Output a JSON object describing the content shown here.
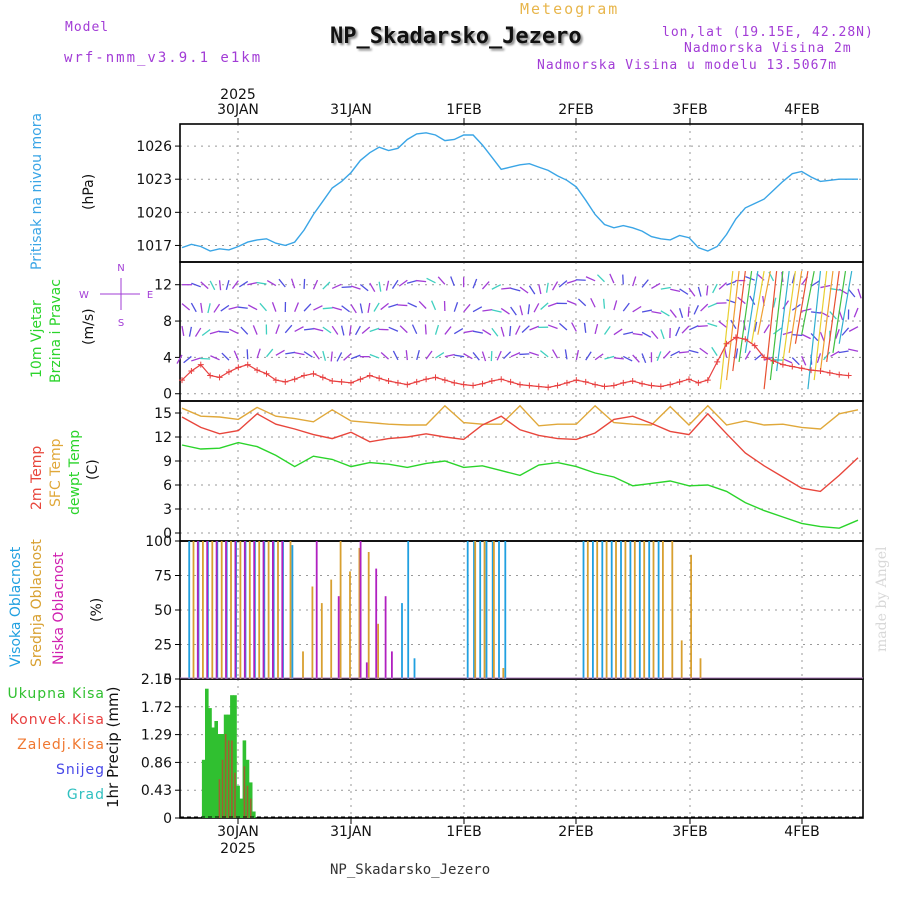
{
  "header": {
    "model_label": "Model",
    "model_name": "wrf-nmm_v3.9.1 e1km",
    "meteogram_label": "Meteogram",
    "station_title": "NP_Skadarsko_Jezero",
    "coords": "lon,lat (19.15E, 42.28N)",
    "altitude": "Nadmorska Visina 2m",
    "model_altitude": "Nadmorska Visina u modelu 13.5067m"
  },
  "footer": {
    "station": "NP_Skadarsko_Jezero",
    "credit": "made by Angel"
  },
  "axis": {
    "year_top": "2025",
    "year_bottom": "2025",
    "dates": [
      "30JAN",
      "31JAN",
      "1FEB",
      "2FEB",
      "3FEB",
      "4FEB"
    ]
  },
  "panel_labels": {
    "pressure": {
      "name": "Pritisak na nivou mora",
      "unit": "(hPa)"
    },
    "wind": {
      "name1": "10m Vjetar",
      "name2": "Brzina i Pravac",
      "unit": "(m/s)",
      "compass": {
        "n": "N",
        "s": "S",
        "e": "E",
        "w": "W"
      }
    },
    "temp": {
      "t2m": "2m Temp",
      "sfc": "SFC Temp",
      "dewpt": "dewpt Temp",
      "unit": "(C)"
    },
    "cloud": {
      "high": "Visoka Oblacnost",
      "mid": "Srednja Oblacnost",
      "low": "Niska Oblacnost",
      "unit": "(%)"
    },
    "precip": {
      "total": "Ukupna Kisa",
      "conv": "Konvek.Kisa",
      "frozen": "Zaledj.Kisa",
      "snow": "Snijeg",
      "graupel": "Grad",
      "axis": "1hr Precip (mm)"
    }
  },
  "colors": {
    "pressure": "#3aa5e6",
    "t2m": "#e8463c",
    "sfc": "#e0a83a",
    "dewpt": "#2bd42b",
    "high": "#20a0e0",
    "mid": "#d8a030",
    "low": "#b020c0",
    "violet": "#a23cd6",
    "total": "#30c030",
    "conv": "#e84040",
    "frozen": "#f07830",
    "snow": "#4848e8",
    "graupel": "#30c0c0"
  },
  "chart_data": [
    {
      "type": "line",
      "panel": "pressure",
      "ylabel": "(hPa)",
      "yticks": [
        1017,
        1020,
        1023,
        1026
      ],
      "ylim": [
        1015.5,
        1028
      ],
      "series": [
        {
          "name": "Pritisak na nivou mora",
          "x": [
            0,
            3,
            6,
            9,
            12,
            15,
            18,
            21,
            24,
            27,
            30,
            33,
            36,
            39,
            42,
            45,
            48,
            51,
            54,
            57,
            60,
            63,
            66,
            69,
            72,
            75,
            78,
            81,
            84,
            87,
            90,
            93,
            96,
            99,
            102,
            105,
            108,
            111,
            114,
            117,
            120,
            123,
            126,
            129,
            132,
            135,
            138,
            141,
            144,
            147,
            150,
            153,
            156,
            159,
            162,
            165,
            168,
            171,
            174,
            177,
            180,
            183,
            186,
            189,
            192,
            195,
            198,
            201,
            204,
            207,
            210,
            213,
            216
          ],
          "values": [
            1016.8,
            1017.1,
            1016.9,
            1016.5,
            1016.7,
            1016.6,
            1016.9,
            1017.3,
            1017.5,
            1017.6,
            1017.2,
            1017.0,
            1017.3,
            1018.4,
            1019.8,
            1021.0,
            1022.2,
            1022.8,
            1023.6,
            1024.7,
            1025.4,
            1025.9,
            1025.6,
            1025.8,
            1026.6,
            1027.1,
            1027.2,
            1027.0,
            1026.5,
            1026.6,
            1027.0,
            1027.0,
            1026.1,
            1025.0,
            1023.9,
            1024.1,
            1024.3,
            1024.4,
            1024.1,
            1023.8,
            1023.3,
            1022.9,
            1022.3,
            1021.1,
            1019.8,
            1018.9,
            1018.6,
            1018.8,
            1018.6,
            1018.3,
            1017.8,
            1017.6,
            1017.5,
            1017.9,
            1017.7,
            1016.8,
            1016.5,
            1016.9,
            1018.0,
            1019.4,
            1020.4,
            1020.8,
            1021.2,
            1022.0,
            1022.8,
            1023.5,
            1023.7,
            1023.2,
            1022.8,
            1022.9,
            1023.0,
            1023.0,
            1023.0
          ]
        }
      ]
    },
    {
      "type": "line",
      "panel": "wind",
      "ylabel": "(m/s)",
      "yticks": [
        0,
        4,
        8,
        12
      ],
      "ylim": [
        -0.8,
        14.5
      ],
      "series": [
        {
          "name": "Brzina i Pravac",
          "x": [
            0,
            3,
            6,
            9,
            12,
            15,
            18,
            21,
            24,
            27,
            30,
            33,
            36,
            39,
            42,
            45,
            48,
            51,
            54,
            57,
            60,
            63,
            66,
            69,
            72,
            75,
            78,
            81,
            84,
            87,
            90,
            93,
            96,
            99,
            102,
            105,
            108,
            111,
            114,
            117,
            120,
            123,
            126,
            129,
            132,
            135,
            138,
            141,
            144,
            147,
            150,
            153,
            156,
            159,
            162,
            165,
            168,
            171,
            174,
            177,
            180,
            183,
            186,
            189,
            192,
            195,
            198,
            201,
            204,
            207,
            210,
            213
          ],
          "values": [
            1.5,
            2.5,
            3.2,
            2.0,
            1.8,
            2.4,
            2.9,
            3.2,
            2.6,
            2.2,
            1.5,
            1.3,
            1.6,
            2.0,
            2.2,
            1.8,
            1.4,
            1.3,
            1.2,
            1.6,
            2.0,
            1.7,
            1.4,
            1.2,
            1.0,
            1.3,
            1.6,
            1.8,
            1.5,
            1.2,
            1.0,
            0.9,
            1.1,
            1.4,
            1.6,
            1.3,
            1.0,
            0.9,
            0.8,
            0.7,
            0.9,
            1.2,
            1.5,
            1.3,
            1.0,
            0.8,
            0.9,
            1.2,
            1.4,
            1.1,
            0.9,
            0.8,
            1.0,
            1.3,
            1.6,
            1.2,
            1.5,
            3.5,
            5.5,
            6.2,
            6.0,
            5.3,
            4.0,
            3.6,
            3.2,
            3.0,
            2.8,
            2.6,
            2.5,
            2.3,
            2.1,
            2.0
          ]
        }
      ]
    },
    {
      "type": "line",
      "panel": "temperature",
      "ylabel": "(C)",
      "yticks": [
        0,
        3,
        6,
        9,
        12,
        15
      ],
      "ylim": [
        -1,
        16.5
      ],
      "series": [
        {
          "name": "2m Temp",
          "x": [
            0,
            6,
            12,
            18,
            24,
            30,
            36,
            42,
            48,
            54,
            60,
            66,
            72,
            78,
            84,
            90,
            96,
            102,
            108,
            114,
            120,
            126,
            132,
            138,
            144,
            150,
            156,
            162,
            168,
            174,
            180,
            186,
            192,
            198,
            204,
            210,
            216
          ],
          "values": [
            14.5,
            13.2,
            12.4,
            12.8,
            14.9,
            13.6,
            13.0,
            12.3,
            11.8,
            12.6,
            11.4,
            11.8,
            12.0,
            12.4,
            12.0,
            11.7,
            13.5,
            14.6,
            12.9,
            12.2,
            11.8,
            11.7,
            12.5,
            14.2,
            14.6,
            13.7,
            12.7,
            12.3,
            14.9,
            12.4,
            10.0,
            8.4,
            7.0,
            5.6,
            5.2,
            7.2,
            9.4
          ]
        },
        {
          "name": "SFC Temp",
          "x": [
            0,
            6,
            12,
            18,
            24,
            30,
            36,
            42,
            48,
            54,
            60,
            66,
            72,
            78,
            84,
            90,
            96,
            102,
            108,
            114,
            120,
            126,
            132,
            138,
            144,
            150,
            156,
            162,
            168,
            174,
            180,
            186,
            192,
            198,
            204,
            210,
            216
          ],
          "values": [
            15.6,
            14.6,
            14.5,
            14.2,
            15.7,
            14.6,
            14.3,
            13.9,
            15.4,
            14.0,
            13.8,
            13.6,
            13.5,
            13.5,
            15.9,
            13.8,
            13.6,
            13.6,
            15.9,
            13.4,
            13.6,
            13.6,
            15.9,
            13.8,
            13.6,
            13.5,
            15.8,
            13.5,
            15.9,
            13.5,
            14.0,
            13.5,
            13.6,
            13.2,
            13.0,
            14.9,
            15.4
          ]
        },
        {
          "name": "dewpt Temp",
          "x": [
            0,
            6,
            12,
            18,
            24,
            30,
            36,
            42,
            48,
            54,
            60,
            66,
            72,
            78,
            84,
            90,
            96,
            102,
            108,
            114,
            120,
            126,
            132,
            138,
            144,
            150,
            156,
            162,
            168,
            174,
            180,
            186,
            192,
            198,
            204,
            210,
            216
          ],
          "values": [
            11.0,
            10.5,
            10.6,
            11.3,
            10.8,
            9.7,
            8.3,
            9.6,
            9.2,
            8.3,
            8.8,
            8.6,
            8.2,
            8.7,
            9.0,
            8.2,
            8.4,
            7.8,
            7.2,
            8.5,
            8.8,
            8.3,
            7.5,
            7.0,
            5.9,
            6.2,
            6.5,
            5.9,
            6.0,
            5.2,
            3.8,
            2.8,
            2.0,
            1.2,
            0.8,
            0.6,
            1.6
          ]
        }
      ]
    },
    {
      "type": "bar",
      "panel": "cloud",
      "ylabel": "(%)",
      "yticks": [
        0,
        25,
        50,
        75,
        100
      ],
      "ylim": [
        0,
        100
      ],
      "series": [
        {
          "name": "Visoka Oblacnost",
          "x": [
            2,
            5,
            8,
            11,
            14,
            17,
            20,
            23,
            26,
            29,
            32,
            35,
            70,
            72,
            74,
            91,
            93,
            95,
            97,
            99,
            101,
            103,
            128,
            131,
            134,
            137,
            140,
            143,
            146,
            149,
            152
          ],
          "values": [
            100,
            100,
            100,
            100,
            100,
            100,
            100,
            100,
            100,
            100,
            100,
            97,
            55,
            100,
            15,
            100,
            100,
            100,
            100,
            100,
            100,
            100,
            100,
            100,
            100,
            100,
            100,
            100,
            100,
            100,
            100
          ]
        },
        {
          "name": "Srednja Oblacnost",
          "x": [
            3,
            6,
            9,
            12,
            15,
            18,
            21,
            24,
            27,
            30,
            34,
            38,
            41,
            44,
            47,
            50,
            53,
            56,
            59,
            62,
            93,
            96,
            99,
            102,
            129,
            132,
            135,
            138,
            141,
            144,
            147,
            150,
            153,
            156,
            159,
            162,
            165
          ],
          "values": [
            100,
            100,
            100,
            100,
            100,
            100,
            100,
            100,
            100,
            100,
            100,
            20,
            67,
            55,
            72,
            100,
            78,
            95,
            92,
            40,
            100,
            100,
            100,
            8,
            100,
            100,
            100,
            100,
            100,
            100,
            100,
            100,
            100,
            100,
            28,
            90,
            15
          ]
        },
        {
          "name": "Niska Oblacnost",
          "x": [
            4,
            7,
            10,
            13,
            16,
            19,
            22,
            25,
            28,
            31,
            42,
            49,
            56,
            58,
            61,
            64,
            66
          ],
          "values": [
            100,
            100,
            100,
            100,
            100,
            100,
            100,
            100,
            100,
            100,
            100,
            60,
            100,
            12,
            80,
            60,
            20
          ]
        }
      ]
    },
    {
      "type": "bar",
      "panel": "precipitation",
      "ylabel": "1hr Precip (mm)",
      "yticks": [
        0,
        0.43,
        0.86,
        1.29,
        1.72,
        2.15
      ],
      "ylim": [
        0,
        2.15
      ],
      "series": [
        {
          "name": "Ukupna Kisa",
          "x": [
            7,
            8,
            9,
            10,
            11,
            12,
            13,
            14,
            15,
            16,
            17,
            18,
            19,
            20,
            21,
            22,
            23
          ],
          "values": [
            0.9,
            2.0,
            1.7,
            1.4,
            1.5,
            1.3,
            1.3,
            1.6,
            1.6,
            1.9,
            1.9,
            0.5,
            0.3,
            1.2,
            0.9,
            0.55,
            0.1
          ]
        },
        {
          "name": "Konvek.Kisa",
          "x": [
            12,
            13,
            14,
            15,
            16,
            17,
            20,
            21,
            22
          ],
          "values": [
            0.6,
            0.9,
            1.3,
            1.2,
            1.2,
            0.7,
            0.8,
            0.5,
            0.3
          ]
        }
      ]
    }
  ]
}
